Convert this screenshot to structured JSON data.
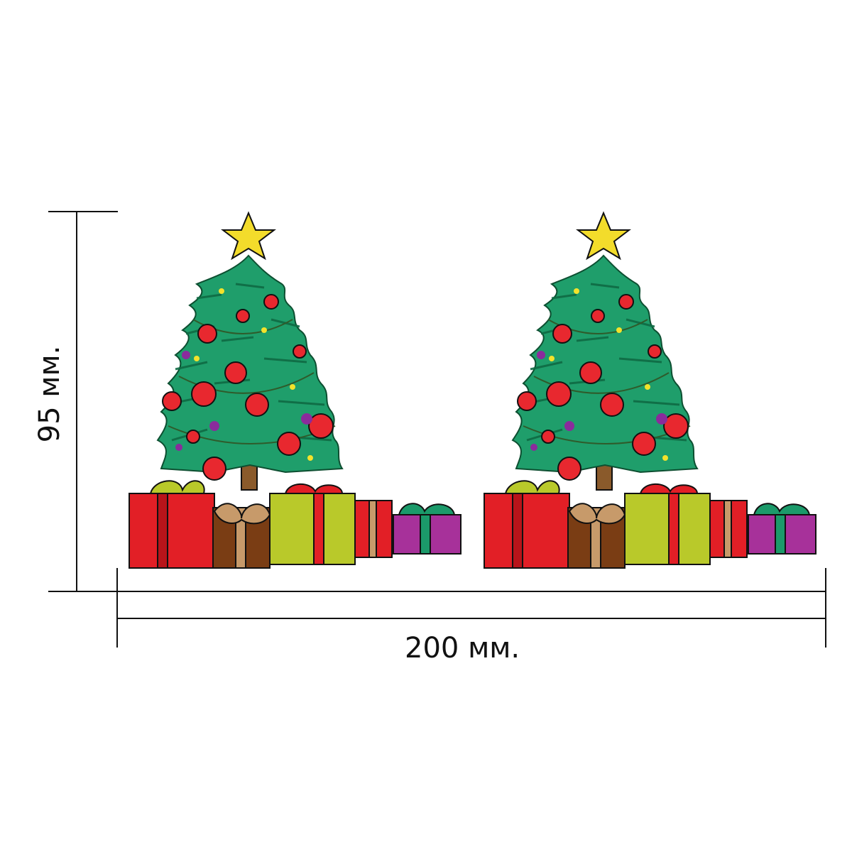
{
  "dimensions": {
    "width_label": "200 мм.",
    "height_label": "95 мм."
  },
  "colors": {
    "line": "#111111",
    "tree": "#1f9e6b",
    "tree_dark": "#0f6b44",
    "ornament": "#e8282f",
    "star": "#f3dc2b",
    "gift_red": "#e21f26",
    "gift_lime": "#b9c92a",
    "gift_brown": "#8a4a1c",
    "gift_tan": "#c79a6a",
    "gift_purple": "#a7319a",
    "ribbon_green": "#1b9a6a"
  },
  "icons": [
    "christmas-tree-illustration",
    "star-icon",
    "gift-box-icon"
  ]
}
